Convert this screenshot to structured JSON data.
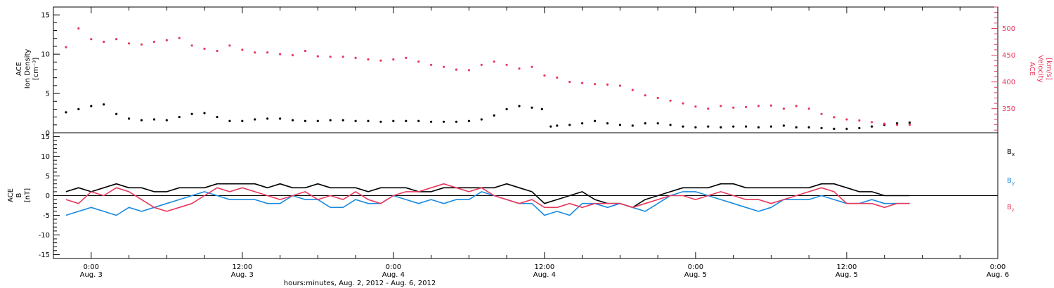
{
  "chart_data": [
    {
      "type": "scatter",
      "panel": "top",
      "ylabel": [
        "ACE",
        "Ion Density",
        "[cm⁻³]"
      ],
      "ylim": [
        0,
        16
      ],
      "yticks": [
        "0",
        "5",
        "10",
        "15"
      ],
      "y2label": [
        "ACE",
        "Velocity",
        "[km/s]"
      ],
      "y2lim": [
        305,
        540
      ],
      "y2ticks": [
        "350",
        "400",
        "450",
        "500"
      ],
      "series": [
        {
          "name": "Ion Density",
          "axis": "left",
          "color": "#000000",
          "x": [
            -2.0,
            -1.0,
            0.0,
            1.0,
            2.0,
            3.0,
            4.0,
            5.0,
            6.0,
            7.0,
            8.0,
            9.0,
            10.0,
            11.0,
            12.0,
            13.0,
            14.0,
            15.0,
            16.0,
            17.0,
            18.0,
            19.0,
            20.0,
            21.0,
            22.0,
            23.0,
            24.0,
            25.0,
            26.0,
            27.0,
            28.0,
            29.0,
            30.0,
            31.0,
            32.0,
            33.0,
            34.0,
            35.0,
            35.8,
            36.5,
            37.0,
            38.0,
            39.0,
            40.0,
            41.0,
            42.0,
            43.0,
            44.0,
            45.0,
            46.0,
            47.0,
            48.0,
            49.0,
            50.0,
            51.0,
            52.0,
            53.0,
            54.0,
            55.0,
            56.0,
            57.0,
            58.0,
            59.0,
            60.0,
            61.0,
            62.0,
            63.0,
            64.0,
            65.0
          ],
          "y": [
            2.6,
            3.0,
            3.4,
            3.6,
            2.4,
            1.8,
            1.6,
            1.7,
            1.6,
            2.0,
            2.4,
            2.5,
            2.0,
            1.5,
            1.5,
            1.7,
            1.8,
            1.8,
            1.6,
            1.5,
            1.5,
            1.6,
            1.6,
            1.5,
            1.5,
            1.4,
            1.5,
            1.5,
            1.5,
            1.4,
            1.4,
            1.4,
            1.5,
            1.7,
            2.2,
            3.0,
            3.4,
            3.2,
            3.0,
            0.8,
            0.9,
            1.0,
            1.2,
            1.5,
            1.2,
            1.0,
            0.9,
            1.2,
            1.2,
            1.0,
            0.8,
            0.7,
            0.8,
            0.7,
            0.8,
            0.8,
            0.7,
            0.8,
            0.9,
            0.7,
            0.7,
            0.6,
            0.5,
            0.5,
            0.6,
            0.8,
            1.0,
            1.2,
            1.3
          ]
        },
        {
          "name": "Velocity",
          "axis": "right",
          "color": "#e8385c",
          "x": [
            -2.0,
            -1.0,
            0.0,
            1.0,
            2.0,
            3.0,
            4.0,
            5.0,
            6.0,
            7.0,
            8.0,
            9.0,
            10.0,
            11.0,
            12.0,
            13.0,
            14.0,
            15.0,
            16.0,
            17.0,
            18.0,
            19.0,
            20.0,
            21.0,
            22.0,
            23.0,
            24.0,
            25.0,
            26.0,
            27.0,
            28.0,
            29.0,
            30.0,
            31.0,
            32.0,
            33.0,
            34.0,
            35.0,
            36.0,
            37.0,
            38.0,
            39.0,
            40.0,
            41.0,
            42.0,
            43.0,
            44.0,
            45.0,
            46.0,
            47.0,
            48.0,
            49.0,
            50.0,
            51.0,
            52.0,
            53.0,
            54.0,
            55.0,
            56.0,
            57.0,
            58.0,
            59.0,
            60.0,
            61.0,
            62.0,
            63.0,
            64.0,
            65.0
          ],
          "y": [
            465,
            500,
            480,
            475,
            480,
            472,
            470,
            475,
            478,
            482,
            468,
            462,
            458,
            468,
            460,
            455,
            455,
            452,
            450,
            458,
            448,
            447,
            447,
            445,
            442,
            440,
            442,
            445,
            438,
            432,
            428,
            423,
            422,
            432,
            438,
            432,
            425,
            428,
            412,
            408,
            400,
            398,
            396,
            395,
            393,
            385,
            375,
            370,
            365,
            360,
            354,
            350,
            355,
            352,
            353,
            355,
            356,
            350,
            355,
            350,
            340,
            334,
            330,
            328,
            325,
            322,
            320,
            320
          ]
        }
      ]
    },
    {
      "type": "line",
      "panel": "bottom",
      "ylabel": [
        "ACE",
        "B",
        "[nT]"
      ],
      "ylim": [
        -16,
        16
      ],
      "yticks": [
        "-15",
        "-10",
        "-5",
        "0",
        "5",
        "10",
        "15"
      ],
      "series": [
        {
          "name": "Bx",
          "color": "#000000",
          "x": [
            -2.0,
            -1.0,
            0.0,
            1.0,
            2.0,
            3.0,
            4.0,
            5.0,
            6.0,
            7.0,
            8.0,
            9.0,
            10.0,
            11.0,
            12.0,
            13.0,
            14.0,
            15.0,
            16.0,
            17.0,
            18.0,
            19.0,
            20.0,
            21.0,
            22.0,
            23.0,
            24.0,
            25.0,
            26.0,
            27.0,
            28.0,
            29.0,
            30.0,
            31.0,
            32.0,
            33.0,
            34.0,
            35.0,
            36.0,
            37.0,
            38.0,
            39.0,
            40.0,
            41.0,
            42.0,
            43.0,
            44.0,
            45.0,
            46.0,
            47.0,
            48.0,
            49.0,
            50.0,
            51.0,
            52.0,
            53.0,
            54.0,
            55.0,
            56.0,
            57.0,
            58.0,
            59.0,
            60.0,
            61.0,
            62.0,
            63.0,
            64.0,
            65.0
          ],
          "y": [
            1,
            2,
            1,
            2,
            3,
            2,
            2,
            1,
            1,
            2,
            2,
            2,
            3,
            3,
            3,
            3,
            2,
            3,
            2,
            2,
            3,
            2,
            2,
            2,
            1,
            2,
            2,
            2,
            1,
            1,
            2,
            2,
            2,
            2,
            2,
            3,
            2,
            1,
            -2,
            -1,
            0,
            1,
            -1,
            -2,
            -2,
            -3,
            -1,
            0,
            1,
            2,
            2,
            2,
            3,
            3,
            2,
            2,
            2,
            2,
            2,
            2,
            3,
            3,
            2,
            1,
            1,
            0,
            0,
            0
          ]
        },
        {
          "name": "By",
          "color": "#1a8ae0",
          "x": [
            -2.0,
            -1.0,
            0.0,
            1.0,
            2.0,
            3.0,
            4.0,
            5.0,
            6.0,
            7.0,
            8.0,
            9.0,
            10.0,
            11.0,
            12.0,
            13.0,
            14.0,
            15.0,
            16.0,
            17.0,
            18.0,
            19.0,
            20.0,
            21.0,
            22.0,
            23.0,
            24.0,
            25.0,
            26.0,
            27.0,
            28.0,
            29.0,
            30.0,
            31.0,
            32.0,
            33.0,
            34.0,
            35.0,
            36.0,
            37.0,
            38.0,
            39.0,
            40.0,
            41.0,
            42.0,
            43.0,
            44.0,
            45.0,
            46.0,
            47.0,
            48.0,
            49.0,
            50.0,
            51.0,
            52.0,
            53.0,
            54.0,
            55.0,
            56.0,
            57.0,
            58.0,
            59.0,
            60.0,
            61.0,
            62.0,
            63.0,
            64.0,
            65.0
          ],
          "y": [
            -5,
            -4,
            -3,
            -4,
            -5,
            -3,
            -4,
            -3,
            -2,
            -1,
            0,
            1,
            0,
            -1,
            -1,
            -1,
            -2,
            -2,
            0,
            -1,
            -1,
            -3,
            -3,
            -1,
            -2,
            -2,
            0,
            -1,
            -2,
            -1,
            -2,
            -1,
            -1,
            1,
            0,
            -1,
            -2,
            -2,
            -5,
            -4,
            -5,
            -2,
            -2,
            -3,
            -2,
            -3,
            -4,
            -2,
            0,
            1,
            1,
            0,
            -1,
            -2,
            -3,
            -4,
            -3,
            -1,
            -1,
            -1,
            0,
            -1,
            -2,
            -2,
            -1,
            -2,
            -2,
            -2
          ]
        },
        {
          "name": "Bz",
          "color": "#e8385c",
          "x": [
            -2.0,
            -1.0,
            0.0,
            1.0,
            2.0,
            3.0,
            4.0,
            5.0,
            6.0,
            7.0,
            8.0,
            9.0,
            10.0,
            11.0,
            12.0,
            13.0,
            14.0,
            15.0,
            16.0,
            17.0,
            18.0,
            19.0,
            20.0,
            21.0,
            22.0,
            23.0,
            24.0,
            25.0,
            26.0,
            27.0,
            28.0,
            29.0,
            30.0,
            31.0,
            32.0,
            33.0,
            34.0,
            35.0,
            36.0,
            37.0,
            38.0,
            39.0,
            40.0,
            41.0,
            42.0,
            43.0,
            44.0,
            45.0,
            46.0,
            47.0,
            48.0,
            49.0,
            50.0,
            51.0,
            52.0,
            53.0,
            54.0,
            55.0,
            56.0,
            57.0,
            58.0,
            59.0,
            60.0,
            61.0,
            62.0,
            63.0,
            64.0,
            65.0
          ],
          "y": [
            -1,
            -2,
            1,
            0,
            2,
            1,
            -1,
            -3,
            -4,
            -3,
            -2,
            0,
            2,
            1,
            2,
            1,
            0,
            -1,
            0,
            1,
            -1,
            0,
            -1,
            1,
            -1,
            -2,
            0,
            1,
            1,
            2,
            3,
            2,
            1,
            2,
            0,
            -1,
            -2,
            -1,
            -3,
            -3,
            -2,
            -3,
            -2,
            -2,
            -2,
            -3,
            -2,
            -1,
            0,
            0,
            -1,
            0,
            1,
            0,
            -1,
            -1,
            -2,
            -1,
            0,
            1,
            2,
            1,
            -2,
            -2,
            -2,
            -3,
            -2,
            -2
          ]
        }
      ],
      "legend": [
        "Bx",
        "By",
        "Bz"
      ],
      "legend_position": "right"
    }
  ],
  "xaxis": {
    "xlim": [
      -3,
      72
    ],
    "ticks": [
      {
        "x": 0,
        "time": "0:00",
        "date": "Aug. 3"
      },
      {
        "x": 12,
        "time": "12:00",
        "date": "Aug. 3"
      },
      {
        "x": 24,
        "time": "0:00",
        "date": "Aug. 4"
      },
      {
        "x": 36,
        "time": "12:00",
        "date": "Aug. 4"
      },
      {
        "x": 48,
        "time": "0:00",
        "date": "Aug. 5"
      },
      {
        "x": 60,
        "time": "12:00",
        "date": "Aug. 5"
      },
      {
        "x": 72,
        "time": "0:00",
        "date": "Aug. 6"
      }
    ],
    "label": "hours:minutes, Aug.  2, 2012 - Aug.  6, 2012"
  },
  "legend": {
    "bx": "B",
    "bx_sub": "x",
    "by": "B",
    "by_sub": "y",
    "bz": "B",
    "bz_sub": "z"
  }
}
